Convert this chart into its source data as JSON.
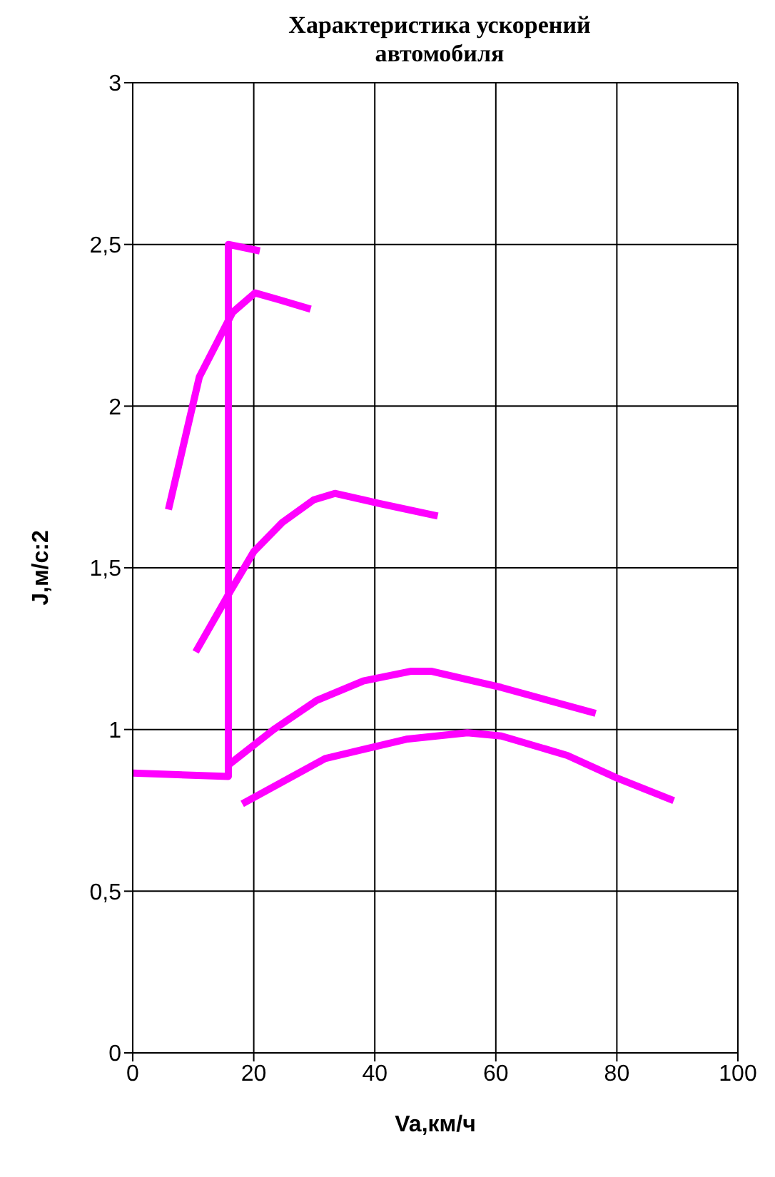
{
  "chart_data": {
    "type": "line",
    "title": "Характеристика ускорений автомобиля",
    "xlabel": "Va,км/ч",
    "ylabel": "J,м/с:2",
    "xlim": [
      0,
      100
    ],
    "xticks": [
      0,
      20,
      40,
      60,
      80,
      100
    ],
    "ylim": [
      0,
      3
    ],
    "yticks": [
      0,
      {
        "value": 0.5,
        "label": "0,5"
      },
      1,
      {
        "value": 1.5,
        "label": "1,5"
      },
      2,
      {
        "value": 2.5,
        "label": "2,5"
      },
      3
    ],
    "grid": true,
    "line_style": "solid",
    "marker": "none",
    "series": [
      {
        "color": "#ff00ff",
        "x": [
          5.9,
          11,
          16.5,
          20.2,
          24,
          29.4
        ],
        "values": [
          1.68,
          2.09,
          2.29,
          2.35,
          2.33,
          2.3
        ]
      },
      {
        "color": "#ff00ff",
        "x": [
          10.4,
          16.2,
          20,
          24.7,
          29.9,
          33.4,
          40.5,
          50.4
        ],
        "values": [
          1.24,
          1.43,
          1.55,
          1.64,
          1.71,
          1.73,
          1.7,
          1.66
        ]
      },
      {
        "color": "#ff00ff",
        "x": [
          15.8,
          23.3,
          30.4,
          38.1,
          45.9,
          49.4,
          60.9,
          76.5
        ],
        "values": [
          0.89,
          1.0,
          1.09,
          1.15,
          1.18,
          1.18,
          1.13,
          1.05
        ]
      },
      {
        "color": "#ff00ff",
        "x": [
          18.1,
          31.8,
          45.2,
          55.3,
          60.9,
          71.8,
          80,
          89.4
        ],
        "values": [
          0.77,
          0.91,
          0.97,
          0.99,
          0.98,
          0.92,
          0.85,
          0.78
        ]
      },
      {
        "color": "#ff00ff",
        "x": [
          0,
          15.8,
          15.8,
          21
        ],
        "values": [
          0.865,
          0.855,
          2.5,
          2.48
        ]
      }
    ]
  }
}
